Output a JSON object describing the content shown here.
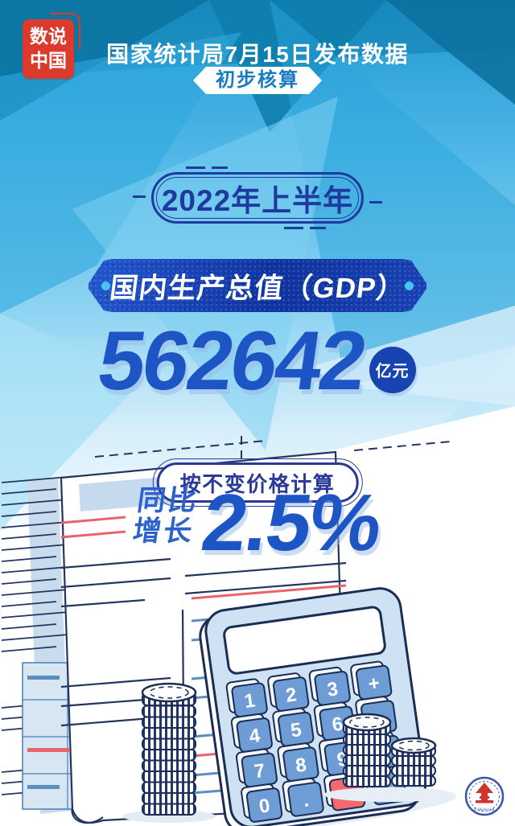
{
  "poster": {
    "seal": {
      "line1": "数说",
      "line2": "中国"
    },
    "header": {
      "title": "国家统计局7月15日发布数据",
      "badge": "初步核算"
    },
    "period": {
      "label": "2022年上半年"
    },
    "gdp": {
      "banner_label": "国内生产总值（GDP）",
      "value": "562642",
      "unit": "亿元"
    },
    "note": {
      "label": "按不变价格计算"
    },
    "growth": {
      "prefix_line1": "同比",
      "prefix_line2": "增长",
      "value": "2.5%"
    }
  },
  "calculator": {
    "keys": [
      "1",
      "2",
      "3",
      "+",
      "4",
      "5",
      "6",
      "-",
      "7",
      "8",
      "9",
      "×",
      "0",
      ".",
      "=",
      "÷"
    ],
    "equals_key": "="
  },
  "logo": {
    "text": "XINHUA"
  },
  "colors": {
    "poster_blue": "#1f98d0",
    "deep_navy": "#1e3a9e",
    "ribbon_blue": "#12379f",
    "number_blue": "#1e55c4",
    "seal_red": "#dc3a2c",
    "key_blue": "#6e9cd4",
    "equals_red": "#f4686e",
    "accent_cyan": "#43c7f2",
    "line_navy": "#24365f",
    "line_blue": "#5b8fc0",
    "line_red": "#e8636a"
  }
}
